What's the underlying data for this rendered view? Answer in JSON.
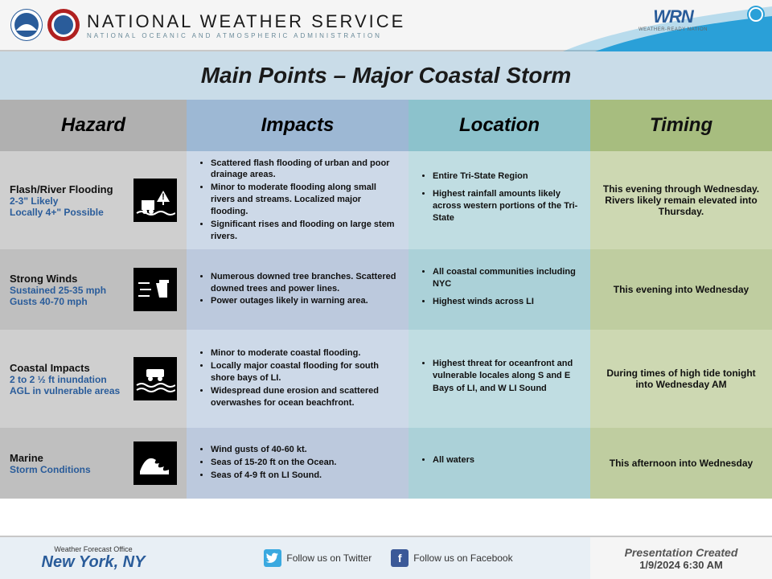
{
  "header": {
    "title": "NATIONAL WEATHER SERVICE",
    "subtitle": "NATIONAL OCEANIC AND ATMOSPHERIC ADMINISTRATION",
    "wrn_label": "WRN",
    "wrn_sub": "WEATHER-READY NATION"
  },
  "title": "Main Points – Major Coastal Storm",
  "columns": {
    "hazard": "Hazard",
    "impacts": "Impacts",
    "location": "Location",
    "timing": "Timing"
  },
  "rows": [
    {
      "hazard_name": "Flash/River Flooding",
      "hazard_sub": "2-3\" Likely\nLocally 4+\" Possible",
      "impacts": [
        "Scattered flash flooding of urban and poor drainage areas.",
        "Minor to moderate flooding along small rivers and streams.  Localized major flooding.",
        "Significant rises and flooding on large stem rivers."
      ],
      "location": [
        "Entire Tri-State Region",
        "Highest rainfall amounts likely across western portions of the Tri-State"
      ],
      "timing": "This evening through Wednesday. Rivers likely remain elevated into Thursday."
    },
    {
      "hazard_name": "Strong Winds",
      "hazard_sub": "Sustained 25-35 mph\nGusts 40-70 mph",
      "impacts": [
        "Numerous downed tree branches. Scattered downed trees and power lines.",
        "Power outages likely in warning area."
      ],
      "location": [
        "All coastal communities including NYC",
        "Highest winds across LI"
      ],
      "timing": "This evening into Wednesday"
    },
    {
      "hazard_name": "Coastal Impacts",
      "hazard_sub": "2 to 2 ½ ft inundation AGL in vulnerable areas",
      "impacts": [
        "Minor to moderate coastal flooding.",
        "Locally major coastal flooding for south shore bays of LI.",
        "Widespread dune erosion and scattered overwashes for ocean beachfront."
      ],
      "location": [
        "Highest threat for oceanfront and vulnerable locales along S and E Bays of LI, and W LI Sound"
      ],
      "timing": "During times of high tide tonight into Wednesday AM"
    },
    {
      "hazard_name": "Marine",
      "hazard_sub": "Storm Conditions",
      "impacts": [
        "Wind gusts of 40-60 kt.",
        "Seas of 15-20 ft on the Ocean.",
        "Seas of 4-9 ft on LI Sound."
      ],
      "location": [
        "All waters"
      ],
      "timing": "This afternoon into Wednesday"
    }
  ],
  "footer": {
    "office_label": "Weather Forecast Office",
    "office_location": "New York, NY",
    "twitter": "Follow us on Twitter",
    "facebook": "Follow us on Facebook",
    "presentation_label": "Presentation Created",
    "timestamp": "1/9/2024 6:30 AM"
  },
  "colors": {
    "header_bg": "#f5f5f5",
    "title_bg": "#c9dce8",
    "haz_head": "#b0b0b0",
    "imp_head": "#9db8d4",
    "loc_head": "#8cc2cc",
    "tim_head": "#a7bd7f",
    "blue_text": "#2a5c9a",
    "swoosh": "#2aa0d8"
  }
}
